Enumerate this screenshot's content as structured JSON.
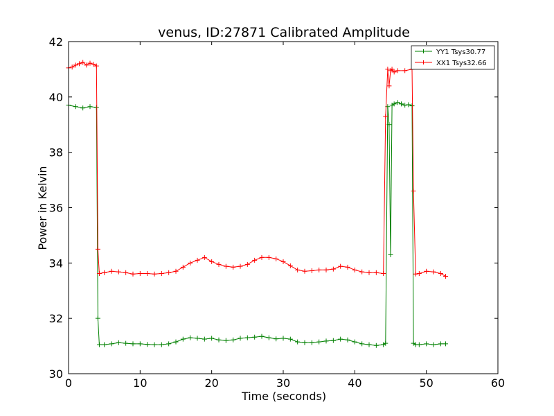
{
  "chart_data": {
    "type": "line",
    "title": "venus, ID:27871 Calibrated Amplitude",
    "xlabel": "Time (seconds)",
    "ylabel": "Power in Kelvin",
    "xlim": [
      0,
      60
    ],
    "ylim": [
      30,
      42
    ],
    "xticks": [
      "0",
      "10",
      "20",
      "30",
      "40",
      "50",
      "60"
    ],
    "yticks": [
      "30",
      "32",
      "34",
      "36",
      "38",
      "40",
      "42"
    ],
    "grid": false,
    "legend_position": "top-right",
    "marker": "+",
    "series": [
      {
        "name": "YY1 Tsys30.77",
        "color": "#008000",
        "x": [
          0,
          1,
          2,
          3,
          3.9,
          4.1,
          4.3,
          5,
          6,
          7,
          8,
          9,
          10,
          11,
          12,
          13,
          14,
          15,
          16,
          17,
          18,
          19,
          20,
          21,
          22,
          23,
          24,
          25,
          26,
          27,
          28,
          29,
          30,
          31,
          32,
          33,
          34,
          35,
          36,
          37,
          38,
          39,
          40,
          41,
          42,
          43,
          44,
          44.3,
          44.6,
          44.8,
          45,
          45.2,
          45.5,
          46,
          46.5,
          47,
          47.5,
          48,
          48.2,
          48.5,
          49,
          50,
          51,
          52,
          52.7
        ],
        "values": [
          39.7,
          39.65,
          39.6,
          39.65,
          39.62,
          32.0,
          31.05,
          31.05,
          31.08,
          31.12,
          31.1,
          31.08,
          31.08,
          31.06,
          31.05,
          31.05,
          31.08,
          31.15,
          31.25,
          31.3,
          31.28,
          31.25,
          31.28,
          31.22,
          31.2,
          31.22,
          31.28,
          31.3,
          31.32,
          31.35,
          31.3,
          31.26,
          31.28,
          31.25,
          31.15,
          31.12,
          31.12,
          31.15,
          31.18,
          31.2,
          31.25,
          31.22,
          31.15,
          31.08,
          31.05,
          31.02,
          31.05,
          31.1,
          39.65,
          39.0,
          34.3,
          39.7,
          39.75,
          39.8,
          39.75,
          39.7,
          39.72,
          39.68,
          31.1,
          31.05,
          31.05,
          31.08,
          31.05,
          31.08,
          31.08
        ]
      },
      {
        "name": "XX1 Tsys32.66",
        "color": "#ff0000",
        "x": [
          0,
          0.5,
          1,
          1.5,
          2,
          2.5,
          3,
          3.5,
          3.9,
          4.1,
          4.3,
          5,
          6,
          7,
          8,
          9,
          10,
          11,
          12,
          13,
          14,
          15,
          16,
          17,
          18,
          19,
          20,
          21,
          22,
          23,
          24,
          25,
          26,
          27,
          28,
          29,
          30,
          31,
          32,
          33,
          34,
          35,
          36,
          37,
          38,
          39,
          40,
          41,
          42,
          43,
          44,
          44.3,
          44.6,
          44.8,
          45,
          45.2,
          45.5,
          46,
          47,
          48,
          48.2,
          48.5,
          49,
          50,
          51,
          52,
          52.7
        ],
        "values": [
          41.05,
          41.08,
          41.15,
          41.2,
          41.25,
          41.15,
          41.22,
          41.18,
          41.12,
          34.5,
          33.62,
          33.65,
          33.7,
          33.68,
          33.65,
          33.6,
          33.62,
          33.62,
          33.6,
          33.62,
          33.65,
          33.7,
          33.85,
          34.0,
          34.1,
          34.2,
          34.05,
          33.95,
          33.88,
          33.85,
          33.88,
          33.95,
          34.1,
          34.2,
          34.2,
          34.15,
          34.05,
          33.9,
          33.75,
          33.7,
          33.72,
          33.75,
          33.75,
          33.78,
          33.88,
          33.85,
          33.75,
          33.68,
          33.65,
          33.65,
          33.62,
          39.3,
          41.0,
          40.4,
          40.95,
          41.0,
          40.9,
          40.95,
          40.95,
          41.0,
          36.6,
          33.6,
          33.62,
          33.7,
          33.68,
          33.62,
          33.52
        ]
      }
    ]
  }
}
